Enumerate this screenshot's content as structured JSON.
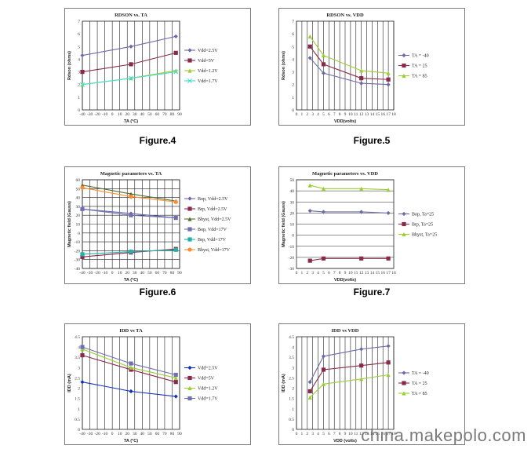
{
  "captions": {
    "fig4": "Figure.4",
    "fig5": "Figure.5",
    "fig6": "Figure.6",
    "fig7": "Figure.7"
  },
  "watermark": "china.makepolo.com",
  "chart_data": [
    {
      "id": "c1",
      "type": "line",
      "title": "RDSON vs. TA",
      "xlabel": "TA (°C)",
      "ylabel": "Rdson (ohms)",
      "xlim": [
        -40,
        90
      ],
      "ylim": [
        0,
        7
      ],
      "xticks": [
        -40,
        -30,
        -20,
        -10,
        0,
        10,
        20,
        30,
        40,
        50,
        60,
        70,
        80,
        90
      ],
      "yticks": [
        0,
        1,
        2,
        3,
        4,
        5,
        6,
        7
      ],
      "grid": "vertical",
      "legend": "right",
      "series": [
        {
          "name": "Vdd=2.5V",
          "color": "#6a6aa8",
          "marker": "diamond",
          "x": [
            -40,
            25,
            85
          ],
          "y": [
            4.3,
            5.0,
            5.8
          ]
        },
        {
          "name": "Vdd=5V",
          "color": "#8a2a4a",
          "marker": "square",
          "x": [
            -40,
            25,
            85
          ],
          "y": [
            3.0,
            3.6,
            4.5
          ]
        },
        {
          "name": "Vdd=1.2V",
          "color": "#9acd32",
          "marker": "triangle",
          "x": [
            -40,
            25,
            85
          ],
          "y": [
            2.0,
            2.5,
            3.1
          ]
        },
        {
          "name": "Vdd=1.7V",
          "color": "#40e0d0",
          "marker": "cross",
          "x": [
            -40,
            25,
            85
          ],
          "y": [
            2.0,
            2.5,
            3.0
          ]
        }
      ]
    },
    {
      "id": "c2",
      "type": "line",
      "title": "RDSON vs. VDD",
      "xlabel": "VDD(volts)",
      "ylabel": "Rdson (ohms)",
      "xlim": [
        0,
        18
      ],
      "ylim": [
        0,
        7
      ],
      "xticks": [
        0,
        1,
        2,
        3,
        4,
        5,
        6,
        7,
        8,
        9,
        10,
        11,
        12,
        13,
        14,
        15,
        16,
        17,
        18
      ],
      "yticks": [
        0,
        1,
        2,
        3,
        4,
        5,
        6,
        7
      ],
      "grid": "vertical",
      "legend": "right",
      "series": [
        {
          "name": "TA = -40",
          "color": "#6a6aa8",
          "marker": "diamond",
          "x": [
            2.5,
            5,
            12,
            17
          ],
          "y": [
            4.1,
            2.9,
            2.1,
            2.0
          ]
        },
        {
          "name": "TA = 25",
          "color": "#8a2a4a",
          "marker": "square",
          "x": [
            2.5,
            5,
            12,
            17
          ],
          "y": [
            5.0,
            3.6,
            2.5,
            2.4
          ]
        },
        {
          "name": "TA = 85",
          "color": "#9acd32",
          "marker": "triangle",
          "x": [
            2.5,
            5,
            12,
            17
          ],
          "y": [
            5.8,
            4.3,
            3.1,
            2.9
          ]
        }
      ]
    },
    {
      "id": "c3",
      "type": "line",
      "title": "Magnetic parameters vs. TA",
      "xlabel": "TA (°C)",
      "ylabel": "Magnetic field (Gauss)",
      "xlim": [
        -40,
        90
      ],
      "ylim": [
        -40,
        60
      ],
      "xticks": [
        -40,
        -30,
        -20,
        -10,
        0,
        10,
        20,
        30,
        40,
        50,
        60,
        70,
        80,
        90
      ],
      "yticks": [
        -40,
        -30,
        -20,
        -10,
        0,
        10,
        20,
        30,
        40,
        50,
        60
      ],
      "grid": "both",
      "legend": "right",
      "series": [
        {
          "name": "Bop, Vdd=2.5V",
          "color": "#6a6aa8",
          "marker": "diamond",
          "x": [
            -40,
            25,
            85
          ],
          "y": [
            27,
            22,
            17
          ]
        },
        {
          "name": "Brp, Vdd=2.5V",
          "color": "#8a2a4a",
          "marker": "square",
          "x": [
            -40,
            25,
            85
          ],
          "y": [
            -27,
            -22,
            -18
          ]
        },
        {
          "name": "Bhyst, Vdd=2.5V",
          "color": "#556b2f",
          "marker": "triangle",
          "x": [
            -40,
            25,
            85
          ],
          "y": [
            54,
            44,
            36
          ]
        },
        {
          "name": "Bop, Vdd=17V",
          "color": "#7070b0",
          "marker": "square",
          "x": [
            -40,
            25,
            85
          ],
          "y": [
            27,
            20,
            17
          ]
        },
        {
          "name": "Brp, Vdd=17V",
          "color": "#20b2aa",
          "marker": "square",
          "x": [
            -40,
            25,
            85
          ],
          "y": [
            -24,
            -21,
            -19
          ]
        },
        {
          "name": "Bhyst, Vdd=17V",
          "color": "#ff8c30",
          "marker": "circle",
          "x": [
            -40,
            25,
            85
          ],
          "y": [
            51,
            41,
            35
          ]
        }
      ]
    },
    {
      "id": "c4",
      "type": "line",
      "title": "Magnetic parameters vs. VDD",
      "xlabel": "VDD(volts)",
      "ylabel": "Magnetic field (Gauss)",
      "xlim": [
        0,
        18
      ],
      "ylim": [
        -30,
        50
      ],
      "xticks": [
        0,
        1,
        2,
        3,
        4,
        5,
        6,
        7,
        8,
        9,
        10,
        11,
        12,
        13,
        14,
        15,
        16,
        17,
        18
      ],
      "yticks": [
        -30,
        -20,
        -10,
        0,
        10,
        20,
        30,
        40,
        50
      ],
      "grid": "horizontal",
      "legend": "right",
      "series": [
        {
          "name": "Bop, Ta=25",
          "color": "#6a6aa8",
          "marker": "diamond",
          "x": [
            2.5,
            5,
            12,
            17
          ],
          "y": [
            22,
            21,
            21,
            20
          ]
        },
        {
          "name": "Brp, Ta=25",
          "color": "#8a2a4a",
          "marker": "square",
          "x": [
            2.5,
            5,
            12,
            17
          ],
          "y": [
            -23,
            -21,
            -21,
            -21
          ]
        },
        {
          "name": "Bhyst, Ta=25",
          "color": "#9acd32",
          "marker": "triangle",
          "x": [
            2.5,
            5,
            12,
            17
          ],
          "y": [
            45,
            42,
            42,
            41
          ]
        }
      ]
    },
    {
      "id": "c5",
      "type": "line",
      "title": "IDD vs TA",
      "xlabel": "TA (°C)",
      "ylabel": "IDD (mA)",
      "xlim": [
        -40,
        90
      ],
      "ylim": [
        0,
        4.5
      ],
      "xticks": [
        -40,
        -30,
        -20,
        -10,
        0,
        10,
        20,
        30,
        40,
        50,
        60,
        70,
        80,
        90
      ],
      "yticks": [
        0,
        0.5,
        1,
        1.5,
        2,
        2.5,
        3,
        3.5,
        4,
        4.5
      ],
      "yticklabels": [
        "0",
        "0.5",
        "1",
        "1.5",
        "2",
        "2.5",
        "3",
        "3.5",
        "4",
        "4.5"
      ],
      "grid": "vertical",
      "legend": "right",
      "series": [
        {
          "name": "Vdd=2.5V",
          "color": "#1030c0",
          "marker": "diamond",
          "x": [
            -40,
            25,
            85
          ],
          "y": [
            2.3,
            1.85,
            1.6
          ]
        },
        {
          "name": "Vdd=5V",
          "color": "#8a2a4a",
          "marker": "square",
          "x": [
            -40,
            25,
            85
          ],
          "y": [
            3.6,
            2.9,
            2.3
          ]
        },
        {
          "name": "Vdd=1.2V",
          "color": "#9acd32",
          "marker": "triangle",
          "x": [
            -40,
            25,
            85
          ],
          "y": [
            3.9,
            3.0,
            2.5
          ]
        },
        {
          "name": "Vdd=1.7V",
          "color": "#7070b0",
          "marker": "square",
          "x": [
            -40,
            25,
            85
          ],
          "y": [
            4.0,
            3.2,
            2.65
          ]
        }
      ]
    },
    {
      "id": "c6",
      "type": "line",
      "title": "IDD vs VDD",
      "xlabel": "VDD (volts)",
      "ylabel": "IDD (mA)",
      "xlim": [
        0,
        18
      ],
      "ylim": [
        0,
        4.5
      ],
      "xticks": [
        0,
        1,
        2,
        3,
        4,
        5,
        6,
        7,
        8,
        9,
        10,
        11,
        12,
        13,
        14,
        15,
        16,
        17,
        18
      ],
      "yticks": [
        0,
        0.5,
        1,
        1.5,
        2,
        2.5,
        3,
        3.5,
        4,
        4.5
      ],
      "yticklabels": [
        "0",
        "0.5",
        "1",
        "1.5",
        "2",
        "2.5",
        "3",
        "3.5",
        "4",
        "4.5"
      ],
      "grid": "vertical",
      "legend": "right",
      "series": [
        {
          "name": "TA = -40",
          "color": "#6a6aa8",
          "marker": "diamond",
          "x": [
            2.5,
            5,
            12,
            17
          ],
          "y": [
            2.3,
            3.55,
            3.9,
            4.05
          ]
        },
        {
          "name": "TA = 25",
          "color": "#8a2a4a",
          "marker": "square",
          "x": [
            2.5,
            5,
            12,
            17
          ],
          "y": [
            1.85,
            2.9,
            3.1,
            3.25
          ]
        },
        {
          "name": "TA = 85",
          "color": "#9acd32",
          "marker": "triangle",
          "x": [
            2.5,
            5,
            12,
            17
          ],
          "y": [
            1.55,
            2.2,
            2.45,
            2.65
          ]
        }
      ]
    }
  ]
}
